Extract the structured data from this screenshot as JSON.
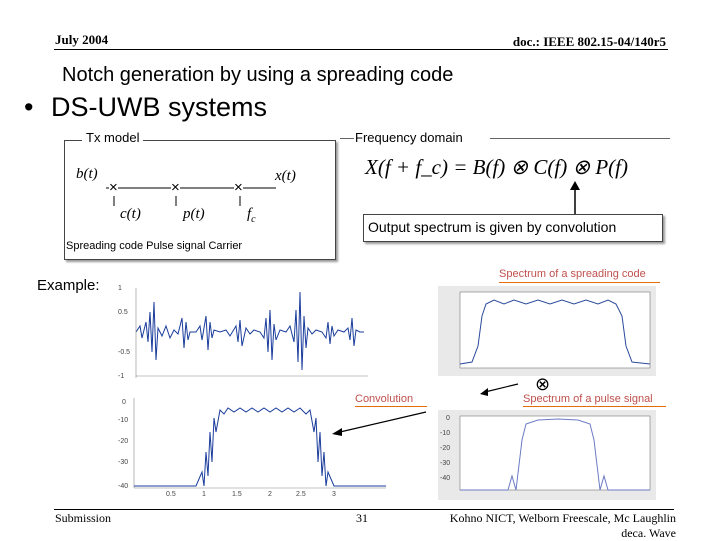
{
  "header": {
    "date": "July 2004",
    "doc": "doc.: IEEE 802.15-04/140r5"
  },
  "slide": {
    "subtitle": "Notch generation by using a spreading code",
    "bullet": "DS-UWB systems",
    "tx_model": {
      "label": "Tx model",
      "input": "b(t)",
      "output": "x(t)",
      "mult_symbol": "×",
      "inputs": [
        "c(t)",
        "p(t)",
        "f"
      ],
      "carrier_subscript": "c",
      "caption": "Spreading code Pulse signal Carrier"
    },
    "freq_domain": {
      "label": "Frequency domain",
      "formula": "X(f + f_c) = B(f) ⊗ C(f) ⊗ P(f)",
      "caption": "Output spectrum is given by convolution"
    },
    "example_label": "Example:",
    "annotations": {
      "spreading_spectrum": "Spectrum of a spreading code",
      "pulse_spectrum": "Spectrum of a pulse signal",
      "convolution": "Convolution",
      "conv_symbol": "⊗"
    }
  },
  "footer": {
    "left": "Submission",
    "page": "31",
    "right_line1": "Kohno NICT, Welborn Freescale, Mc Laughlin",
    "right_line2": "deca. Wave"
  }
}
